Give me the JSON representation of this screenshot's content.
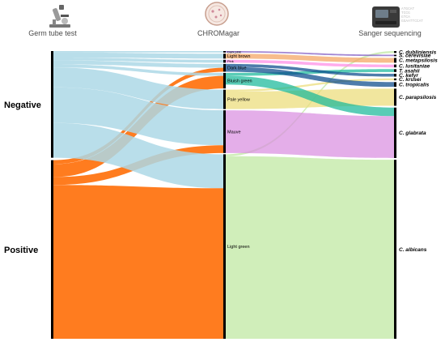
{
  "headers": {
    "col1": "Germ tube test",
    "col2": "CHROMagar",
    "col3": "Sanger sequencing"
  },
  "icons": {
    "col1": "microscope-icon",
    "col2": "petri-dish-icon",
    "col3": "sequencer-icon"
  },
  "sequencer_watermark": "ATGCAT\nTCCG\nGTCA\nGGAATTCCAT",
  "germ_tube": [
    {
      "key": "neg",
      "label": "Negative",
      "color": "#ADD8E6"
    },
    {
      "key": "pos",
      "label": "Positive",
      "color": "#FF6A00"
    }
  ],
  "chromagar": [
    {
      "key": "darkpink",
      "label": "Dark pink",
      "color": "#7E57C2"
    },
    {
      "key": "lightbrown",
      "label": "Light brown",
      "color": "#F4A460"
    },
    {
      "key": "pink",
      "label": "Pink",
      "color": "#FF8CE6"
    },
    {
      "key": "darkblue",
      "label": "Dark blue",
      "color": "#0A4A8A"
    },
    {
      "key": "bluishgreen",
      "label": "Bluish green",
      "color": "#19B99A"
    },
    {
      "key": "paleyellow",
      "label": "Pale yellow",
      "color": "#EBDC78"
    },
    {
      "key": "mauve",
      "label": "Mauve",
      "color": "#DA8FE0"
    },
    {
      "key": "lightgreen",
      "label": "Light green",
      "color": "#BEE8A0"
    }
  ],
  "species": [
    {
      "key": "dubliniensis",
      "label": "C. dubliniensis",
      "color": "#BEE8A0"
    },
    {
      "key": "cerevisiae",
      "label": "S. cerevisiae",
      "color": "#7E57C2"
    },
    {
      "key": "metapsilosis",
      "label": "C. metapsilosis",
      "color": "#F4A460"
    },
    {
      "key": "lusitaniae",
      "label": "C. lusitaniae",
      "color": "#FF8CE6"
    },
    {
      "key": "asahii",
      "label": "T. asahii",
      "color": "#19B99A"
    },
    {
      "key": "kefyr",
      "label": "C. kefyr",
      "color": "#FF8CE6"
    },
    {
      "key": "krusei",
      "label": "C. krusei",
      "color": "#FF8CE6"
    },
    {
      "key": "tropicalis",
      "label": "C. tropicalis",
      "color": "#0A4A8A"
    },
    {
      "key": "parapsilosis",
      "label": "C. parapsilosis",
      "color": "#EBDC78"
    },
    {
      "key": "glabrata",
      "label": "C. glabrata",
      "color": "#DA8FE0"
    },
    {
      "key": "albicans",
      "label": "C. albicans",
      "color": "#BEE8A0"
    }
  ],
  "links_gt_chrom": [
    {
      "from": "neg",
      "to": "darkpink",
      "value": 1.5
    },
    {
      "from": "neg",
      "to": "lightbrown",
      "value": 5
    },
    {
      "from": "neg",
      "to": "pink",
      "value": 3
    },
    {
      "from": "neg",
      "to": "darkblue",
      "value": 4
    },
    {
      "from": "pos",
      "to": "darkblue",
      "value": 4
    },
    {
      "from": "neg",
      "to": "bluishgreen",
      "value": 3
    },
    {
      "from": "pos",
      "to": "bluishgreen",
      "value": 13
    },
    {
      "from": "neg",
      "to": "paleyellow",
      "value": 20
    },
    {
      "from": "neg",
      "to": "mauve",
      "value": 36
    },
    {
      "from": "pos",
      "to": "mauve",
      "value": 8
    },
    {
      "from": "neg",
      "to": "lightgreen",
      "value": 35
    },
    {
      "from": "pos",
      "to": "lightgreen",
      "value": 155
    }
  ],
  "links_chrom_species": [
    {
      "from": "darkpink",
      "to": "cerevisiae",
      "value": 1.5
    },
    {
      "from": "lightbrown",
      "to": "metapsilosis",
      "value": 5
    },
    {
      "from": "pink",
      "to": "lusitaniae",
      "value": 3
    },
    {
      "from": "darkblue",
      "to": "kefyr",
      "value": 3
    },
    {
      "from": "darkblue",
      "to": "tropicalis",
      "value": 5
    },
    {
      "from": "bluishgreen",
      "to": "asahii",
      "value": 3
    },
    {
      "from": "bluishgreen",
      "to": "glabrata",
      "value": 9
    },
    {
      "from": "paleyellow",
      "to": "krusei",
      "value": 2
    },
    {
      "from": "paleyellow",
      "to": "parapsilosis",
      "value": 18
    },
    {
      "from": "mauve",
      "to": "glabrata",
      "value": 44
    },
    {
      "from": "lightgreen",
      "to": "dubliniensis",
      "value": 2
    },
    {
      "from": "lightgreen",
      "to": "albicans",
      "value": 188
    }
  ]
}
